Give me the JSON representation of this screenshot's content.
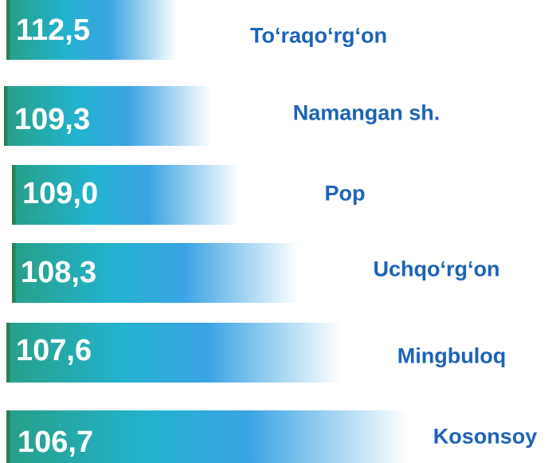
{
  "items": [
    {
      "value": "112,5",
      "name": "To‘raqo‘rg‘on"
    },
    {
      "value": "109,3",
      "name": "Namangan sh."
    },
    {
      "value": "109,0",
      "name": "Pop"
    },
    {
      "value": "108,3",
      "name": "Uchqo‘rg‘on"
    },
    {
      "value": "107,6",
      "name": "Mingbuloq"
    },
    {
      "value": "106,7",
      "name": "Kosonsoy"
    }
  ]
}
